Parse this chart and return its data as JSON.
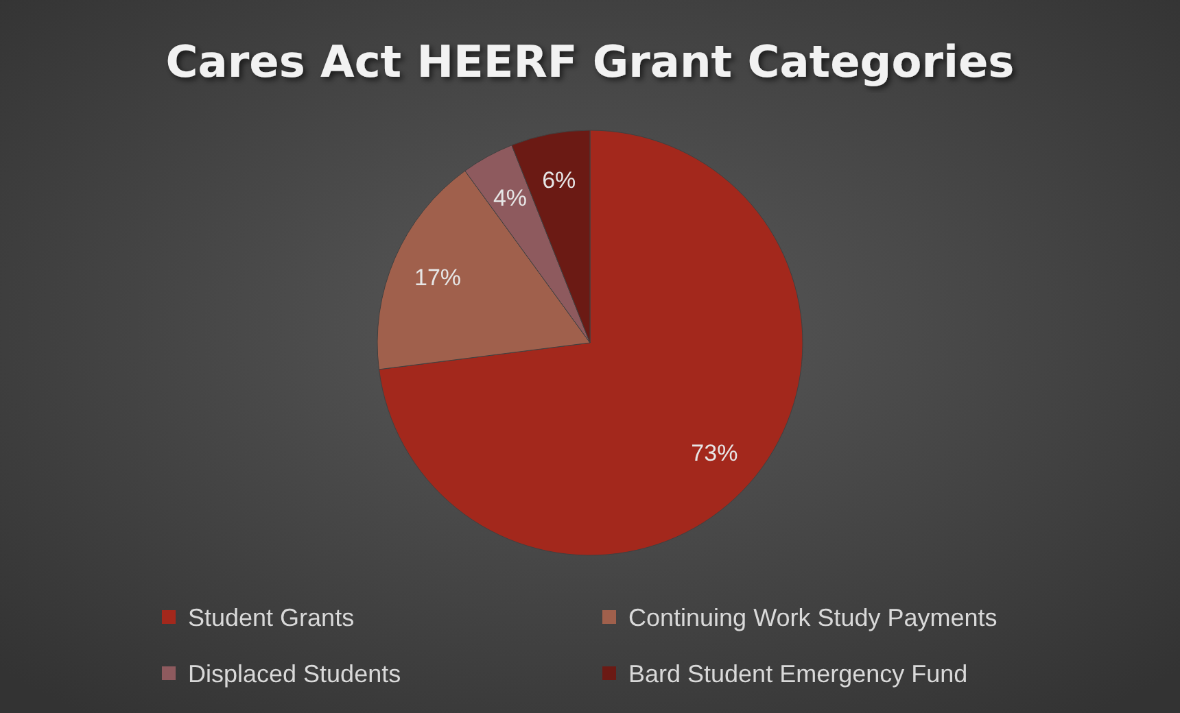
{
  "chart_data": {
    "type": "pie",
    "title": "Cares Act HEERF Grant Categories",
    "categories": [
      "Student Grants",
      "Continuing Work Study Payments",
      "Displaced Students",
      "Bard Student Emergency Fund"
    ],
    "values": [
      73,
      17,
      4,
      6
    ],
    "colors": [
      "#a3281c",
      "#a0604c",
      "#8e5a5e",
      "#6b1a14"
    ],
    "value_labels": [
      "73%",
      "17%",
      "4%",
      "6%"
    ],
    "legend": "bottom"
  }
}
